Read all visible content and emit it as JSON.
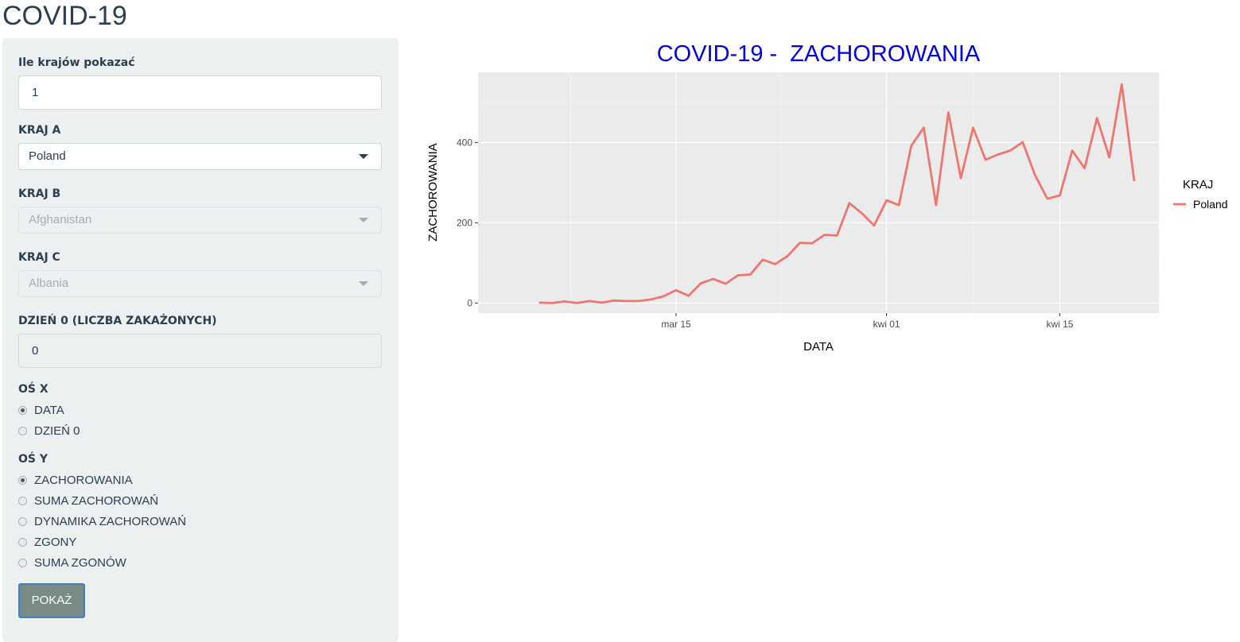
{
  "app_title": "COVID-19",
  "sidebar": {
    "countries_count": {
      "label": "Ile krajów pokazać",
      "value": "1"
    },
    "country_a": {
      "label": "KRAJ A",
      "value": "Poland"
    },
    "country_b": {
      "label": "KRAJ B",
      "value": "Afghanistan"
    },
    "country_c": {
      "label": "KRAJ C",
      "value": "Albania"
    },
    "day_zero": {
      "label": "DZIEŃ 0 (LICZBA ZAKAŻONYCH)",
      "value": "0"
    },
    "x_axis": {
      "label": "OŚ X",
      "options": [
        {
          "label": "DATA",
          "checked": true
        },
        {
          "label": "DZIEŃ 0",
          "checked": false
        }
      ]
    },
    "y_axis": {
      "label": "OŚ Y",
      "options": [
        {
          "label": "ZACHOROWANIA",
          "checked": true
        },
        {
          "label": "SUMA ZACHOROWAŃ",
          "checked": false
        },
        {
          "label": "DYNAMIKA ZACHOROWAŃ",
          "checked": false
        },
        {
          "label": "ZGONY",
          "checked": false
        },
        {
          "label": "SUMA ZGONÓW",
          "checked": false
        }
      ]
    },
    "submit_label": "POKAŻ"
  },
  "chart_data": {
    "type": "line",
    "title": "COVID-19 -  ZACHOROWANIA",
    "xlabel": "DATA",
    "ylabel": "ZACHOROWANIA",
    "x_tick_labels": [
      "mar 15",
      "kwi 01",
      "kwi 15"
    ],
    "x_ticks": [
      "2020-03-15",
      "2020-04-01",
      "2020-04-15"
    ],
    "y_ticks": [
      0,
      200,
      400
    ],
    "xlim": [
      "2020-02-28",
      "2020-04-23"
    ],
    "ylim": [
      -25,
      575
    ],
    "legend": {
      "title": "KRAJ",
      "position": "right"
    },
    "grid": true,
    "series": [
      {
        "name": "Poland",
        "color": "#ee766f",
        "x": [
          "2020-03-04",
          "2020-03-05",
          "2020-03-06",
          "2020-03-07",
          "2020-03-08",
          "2020-03-09",
          "2020-03-10",
          "2020-03-11",
          "2020-03-12",
          "2020-03-13",
          "2020-03-14",
          "2020-03-15",
          "2020-03-16",
          "2020-03-17",
          "2020-03-18",
          "2020-03-19",
          "2020-03-20",
          "2020-03-21",
          "2020-03-22",
          "2020-03-23",
          "2020-03-24",
          "2020-03-25",
          "2020-03-26",
          "2020-03-27",
          "2020-03-28",
          "2020-03-29",
          "2020-03-30",
          "2020-03-31",
          "2020-04-01",
          "2020-04-02",
          "2020-04-03",
          "2020-04-04",
          "2020-04-05",
          "2020-04-06",
          "2020-04-07",
          "2020-04-08",
          "2020-04-09",
          "2020-04-10",
          "2020-04-11",
          "2020-04-12",
          "2020-04-13",
          "2020-04-14",
          "2020-04-15",
          "2020-04-16",
          "2020-04-17",
          "2020-04-18",
          "2020-04-19",
          "2020-04-20",
          "2020-04-21"
        ],
        "values": [
          1,
          0,
          4,
          0,
          5,
          1,
          6,
          5,
          5,
          9,
          17,
          32,
          18,
          49,
          60,
          48,
          69,
          71,
          108,
          97,
          117,
          150,
          149,
          170,
          168,
          249,
          224,
          193,
          256,
          244,
          392,
          437,
          244,
          475,
          311,
          437,
          357,
          370,
          380,
          401,
          318,
          260,
          268,
          380,
          336,
          461,
          363,
          545,
          306
        ]
      }
    ]
  }
}
